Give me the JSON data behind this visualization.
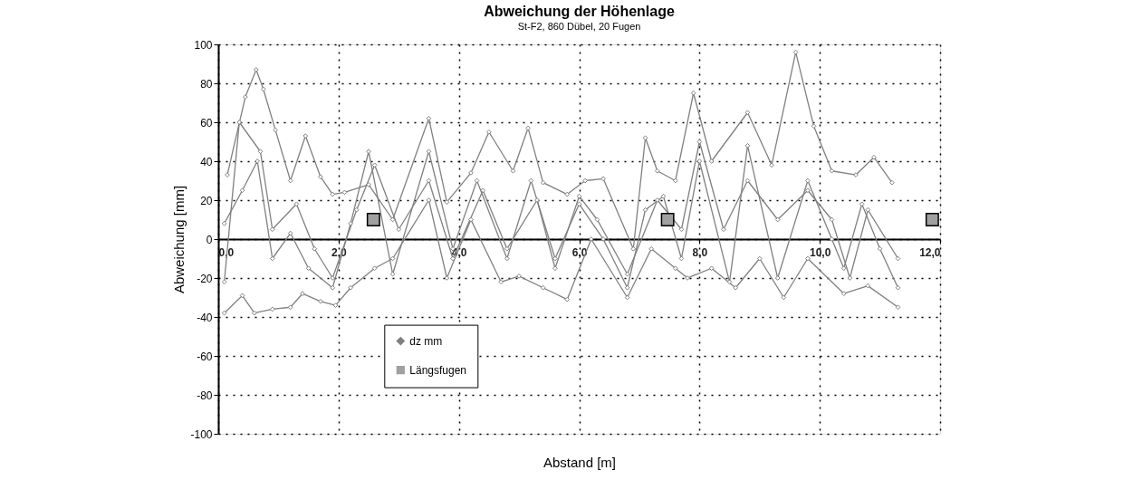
{
  "chart_data": {
    "type": "line",
    "title": "Abweichung der Höhenlage",
    "subtitle": "St-F2, 860 Dübel, 20 Fugen",
    "xlabel": "Abstand [m]",
    "ylabel": "Abweichung [mm]",
    "xlim": [
      0,
      12
    ],
    "ylim": [
      -100,
      100
    ],
    "xticks": [
      {
        "value": 0,
        "label": "0,0"
      },
      {
        "value": 2,
        "label": "2,0"
      },
      {
        "value": 4,
        "label": "4,0"
      },
      {
        "value": 6,
        "label": "6,0"
      },
      {
        "value": 8,
        "label": "8,0"
      },
      {
        "value": 10,
        "label": "10,0"
      },
      {
        "value": 12,
        "label": "12,0"
      }
    ],
    "yticks": [
      -100,
      -80,
      -60,
      -40,
      -20,
      0,
      20,
      40,
      60,
      80,
      100
    ],
    "grid": true,
    "legend": "bottom left",
    "series": [
      {
        "name": "dz mm",
        "color": "#808080",
        "marker": "diamond",
        "line_style": "solid",
        "x": [
          0.15,
          0.45,
          0.63,
          0.75,
          0.95,
          1.2,
          1.45,
          1.7,
          1.9,
          2.1,
          2.5,
          2.9,
          3.5,
          3.8,
          4.2,
          4.5,
          4.9,
          5.15,
          5.4,
          5.8,
          6.1,
          6.4,
          6.9,
          7.1,
          7.3,
          7.6,
          7.9,
          8.2,
          8.8,
          9.2,
          9.6,
          9.9,
          10.2,
          10.6,
          10.9,
          11.2,
          null,
          0.1,
          0.4,
          0.65,
          0.9,
          1.2,
          1.5,
          1.9,
          2.2,
          2.5,
          2.9,
          3.5,
          3.9,
          4.3,
          4.8,
          5.2,
          5.6,
          6.0,
          6.4,
          6.8,
          7.1,
          7.4,
          7.7,
          8.0,
          8.5,
          8.8,
          9.3,
          9.8,
          10.2,
          10.4,
          10.7,
          11.0,
          11.3,
          null,
          0.1,
          0.4,
          0.6,
          0.9,
          1.2,
          1.4,
          1.7,
          1.95,
          2.2,
          2.6,
          2.9,
          3.5,
          3.8,
          4.2,
          4.7,
          5.0,
          5.4,
          5.8,
          6.2,
          6.8,
          7.2,
          7.6,
          7.8,
          8.2,
          8.6,
          9.0,
          9.4,
          9.8,
          10.4,
          10.8,
          11.3,
          null,
          0.1,
          0.35,
          0.7,
          0.9,
          1.3,
          1.6,
          1.9,
          2.3,
          2.6,
          3.0,
          3.5,
          3.9,
          4.4,
          4.8,
          5.3,
          5.6,
          6.0,
          6.3,
          6.8,
          7.3,
          7.7,
          8.0,
          8.4,
          8.8,
          9.3,
          9.8,
          10.2,
          10.5,
          10.8,
          11.3
        ],
        "values": [
          33,
          73,
          87,
          77,
          56,
          30,
          53,
          32,
          23,
          24,
          28,
          10,
          62,
          19,
          34,
          55,
          35,
          57,
          29,
          23,
          30,
          31,
          -5,
          52,
          35,
          30,
          75,
          40,
          65,
          38,
          96,
          58,
          35,
          33,
          42,
          29,
          null,
          8,
          25,
          40,
          -10,
          3,
          -15,
          -25,
          8,
          45,
          -18,
          45,
          -5,
          30,
          -10,
          30,
          -10,
          18,
          0,
          -25,
          15,
          22,
          -10,
          40,
          -22,
          48,
          -20,
          30,
          0,
          -15,
          18,
          -5,
          -25,
          null,
          -38,
          -29,
          -38,
          -36,
          -35,
          -28,
          -32,
          -34,
          -25,
          -15,
          -10,
          20,
          -20,
          10,
          -22,
          -19,
          -25,
          -31,
          0,
          -30,
          -5,
          -15,
          -20,
          -15,
          -25,
          -10,
          -30,
          -10,
          -28,
          -24,
          -35,
          null,
          -22,
          60,
          45,
          5,
          18,
          -5,
          -20,
          15,
          38,
          5,
          30,
          -10,
          25,
          -5,
          20,
          -15,
          22,
          10,
          -18,
          20,
          5,
          50,
          5,
          30,
          10,
          25,
          10,
          -20,
          15,
          -10
        ]
      },
      {
        "name": "Längsfugen",
        "type": "scatter",
        "color": "#a0a0a0",
        "marker": "square",
        "x": [
          2.58,
          7.47,
          11.87
        ],
        "values": [
          10,
          10,
          10
        ]
      }
    ]
  }
}
